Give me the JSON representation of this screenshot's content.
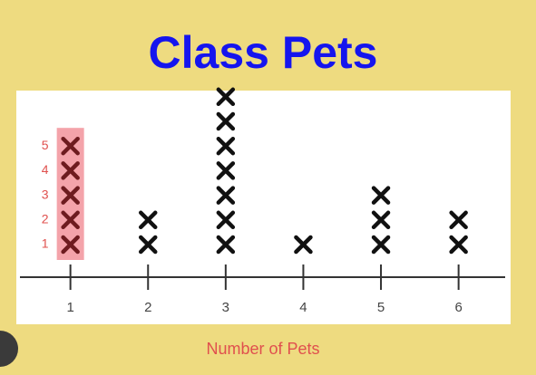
{
  "chart_data": {
    "type": "dot",
    "title": "Class Pets",
    "x_label": "Number of Pets",
    "x": [
      1,
      2,
      3,
      4,
      5,
      6
    ],
    "values": [
      5,
      2,
      7,
      1,
      3,
      2
    ],
    "xlim": [
      0.35,
      6.6
    ],
    "xticks": [
      1,
      2,
      3,
      4,
      5,
      6
    ],
    "color": "#111111",
    "highlight_x": 1,
    "highlight_color": "#f4a3aa",
    "highlight_mark_color": "#6e1b1f",
    "count_labels": [
      1,
      2,
      3,
      4,
      5
    ]
  }
}
